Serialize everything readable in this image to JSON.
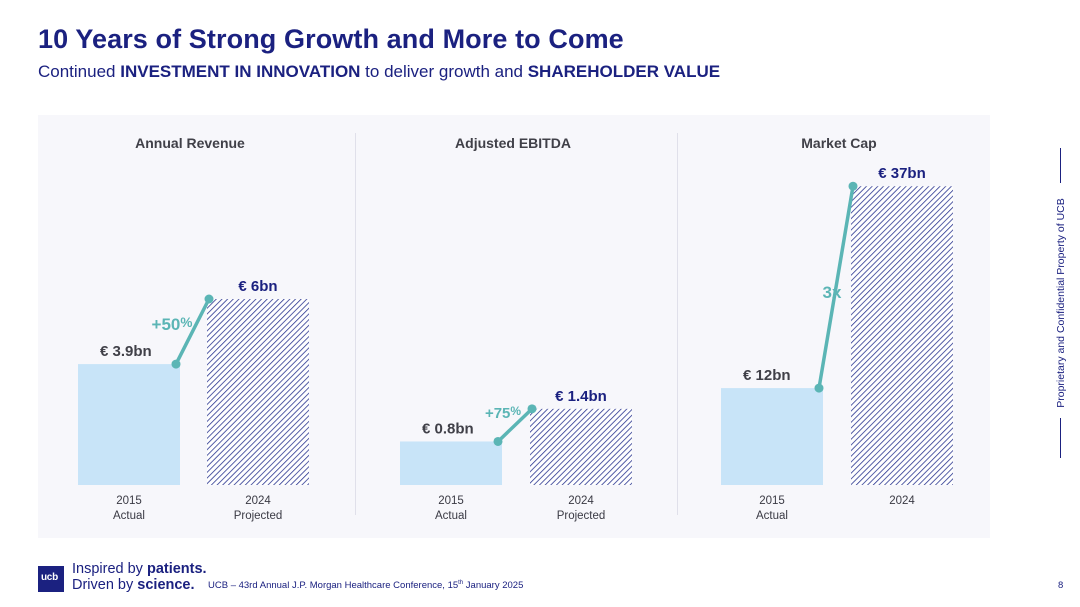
{
  "header": {
    "title": "10 Years of Strong Growth and More to Come",
    "subtitle_parts": [
      "Continued ",
      "INVESTMENT IN INNOVATION",
      " to deliver growth and ",
      "SHAREHOLDER VALUE"
    ]
  },
  "colors": {
    "navy": "#1b2180",
    "actual_bar": "#c8e4f8",
    "projected_stripe": "#2a3590",
    "growth": "#5bb5b5",
    "title_grey": "#404048"
  },
  "chart_data": [
    {
      "type": "bar",
      "title": "Annual Revenue",
      "categories": [
        "2015\nActual",
        "2024\nProjected"
      ],
      "category_lines": [
        [
          "2015",
          "Actual"
        ],
        [
          "2024",
          "Projected"
        ]
      ],
      "values": [
        3.9,
        6
      ],
      "unit": "€ bn",
      "value_labels": [
        "€ 3.9bn",
        "€ 6bn"
      ],
      "growth_label": "+50",
      "growth_suffix": "%",
      "ylim": [
        0,
        10
      ]
    },
    {
      "type": "bar",
      "title": "Adjusted EBITDA",
      "categories": [
        "2015\nActual",
        "2024\nProjected"
      ],
      "category_lines": [
        [
          "2015",
          "Actual"
        ],
        [
          "2024",
          "Projected"
        ]
      ],
      "values": [
        0.8,
        1.4
      ],
      "unit": "€ bn",
      "value_labels": [
        "€ 0.8bn",
        "€ 1.4bn"
      ],
      "growth_label": "+75",
      "growth_suffix": "%",
      "ylim": [
        0,
        2.5
      ]
    },
    {
      "type": "bar",
      "title": "Market Cap",
      "categories": [
        "2015\nActual",
        "2024"
      ],
      "category_lines": [
        [
          "2015",
          "Actual"
        ],
        [
          "2024"
        ]
      ],
      "values": [
        12,
        37
      ],
      "unit": "€ bn",
      "value_labels": [
        "€ 12bn",
        "€ 37bn"
      ],
      "growth_label": "3x",
      "growth_suffix": "",
      "ylim": [
        0,
        40
      ]
    }
  ],
  "side_note": "Proprietary and Confidential Property of UCB",
  "footer": {
    "logo_text": "ucb",
    "tagline_line1_a": "Inspired by ",
    "tagline_line1_b": "patients.",
    "tagline_line2_a": "Driven by ",
    "tagline_line2_b": "science.",
    "conference_a": "UCB – 43rd Annual J.P. Morgan Healthcare Conference, 15",
    "conference_sup": "th",
    "conference_b": " January 2025",
    "page_number": "8"
  }
}
